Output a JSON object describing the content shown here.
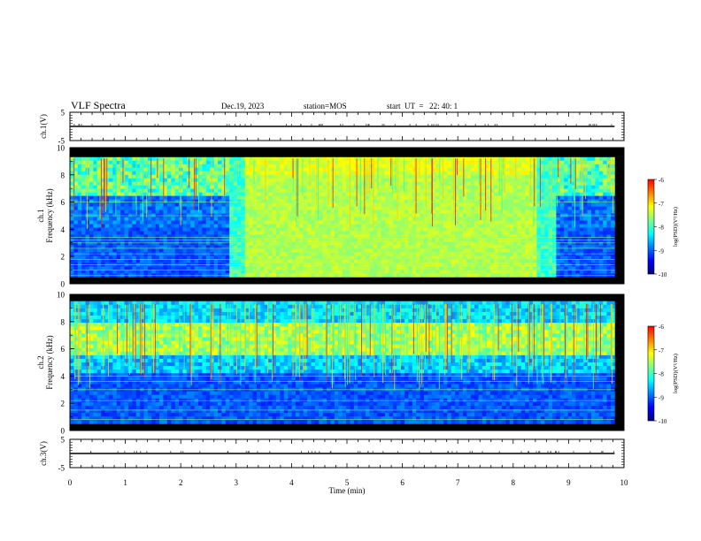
{
  "header": {
    "title": "VLF Spectra",
    "date": "Dec.19, 2023",
    "station": "station=MOS",
    "start": "start  UT  =   22: 40: 1"
  },
  "chart_data": [
    {
      "type": "line",
      "panel": "ch1-waveform",
      "ylabel": "ch.1(V)",
      "ylim": [
        -5,
        5
      ],
      "yticks": [
        "5",
        "-5"
      ],
      "xlim": [
        0,
        10
      ],
      "series": [
        {
          "x": [
            0,
            9.83
          ],
          "values": [
            0,
            0
          ]
        }
      ]
    },
    {
      "type": "heatmap",
      "panel": "ch1-spectrogram",
      "ylabel": "ch.1\nFrequency (kHz)",
      "ylabel_lines": [
        "ch.1",
        "Frequency (kHz)"
      ],
      "ylim": [
        0,
        10
      ],
      "yticks": [
        "0",
        "2",
        "4",
        "6",
        "8",
        "10"
      ],
      "xlim": [
        0,
        10
      ],
      "data_xmax": 9.83,
      "colorbar": {
        "label": "log(PSD)(V²/Hz)",
        "range": [
          -10,
          -6
        ],
        "ticks": [
          "-6",
          "-7",
          "-8",
          "-9",
          "-10"
        ]
      },
      "features": {
        "background_band_khz": [
          0.5,
          9.3
        ],
        "enhanced_noise_interval_min": [
          3.0,
          8.6
        ],
        "enhanced_noise_band_khz": [
          0.5,
          9.0
        ],
        "horizontal_lines_khz": [
          0.6,
          1.0,
          1.4,
          1.8,
          2.2,
          2.6,
          3.0,
          3.2,
          3.4,
          5.0,
          6.0
        ]
      }
    },
    {
      "type": "heatmap",
      "panel": "ch2-spectrogram",
      "ylabel": "ch.2\nFrequency (kHz)",
      "ylabel_lines": [
        "ch.2",
        "Frequency (kHz)"
      ],
      "ylim": [
        0,
        10
      ],
      "yticks": [
        "0",
        "2",
        "4",
        "6",
        "8",
        "10"
      ],
      "xlim": [
        0,
        10
      ],
      "data_xmax": 9.83,
      "colorbar": {
        "label": "log(PSD)(V²/Hz)",
        "range": [
          -10,
          -6
        ],
        "ticks": [
          "-6",
          "-7",
          "-8",
          "-9",
          "-10"
        ]
      },
      "features": {
        "background_band_khz": [
          0.5,
          9.5
        ],
        "strong_band_khz": [
          5.5,
          8.0
        ],
        "horizontal_lines_khz": [
          0.8,
          1.5,
          2.2,
          3.0,
          3.6,
          4.0
        ]
      }
    },
    {
      "type": "line",
      "panel": "ch3-waveform",
      "ylabel": "ch.3(V)",
      "ylim": [
        -5,
        5
      ],
      "yticks": [
        "5",
        "-5"
      ],
      "xlim": [
        0,
        10
      ],
      "series": [
        {
          "x": [
            0,
            9.83
          ],
          "values": [
            0,
            0
          ]
        }
      ]
    }
  ],
  "xaxis": {
    "label": "Time  (min)",
    "ticks": [
      "0",
      "1",
      "2",
      "3",
      "4",
      "5",
      "6",
      "7",
      "8",
      "9",
      "10"
    ]
  },
  "colors": {
    "colormap": [
      "#00007f",
      "#0000ff",
      "#0080ff",
      "#00ffff",
      "#80ff80",
      "#ffff00",
      "#ff8000",
      "#ff0000",
      "#ffffff"
    ],
    "axes": "#000000",
    "background": "#ffffff"
  }
}
